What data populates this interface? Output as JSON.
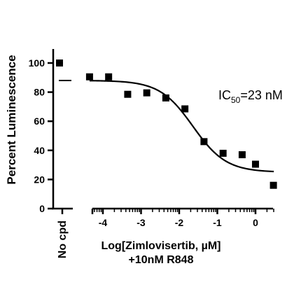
{
  "chart_data": {
    "type": "scatter",
    "ylabel": "Percent Luminescence",
    "xlabel_line1": "Log[Zimlovisertib, µM]",
    "xlabel_line2": "+10nM R848",
    "annotation": "IC50=23 nM",
    "annotation_parts": {
      "prefix": "IC",
      "subscript": "50",
      "suffix": "=23 nM"
    },
    "control": {
      "label": "No cpd",
      "points": [
        100
      ],
      "mean_line": 88
    },
    "x_ticks": [
      -4,
      -3,
      -2,
      -1,
      0
    ],
    "x_tick_labels": [
      "-4",
      "-3",
      "-2",
      "-1",
      "0"
    ],
    "y_ticks": [
      0,
      20,
      40,
      60,
      80,
      100
    ],
    "y_tick_labels": [
      "0",
      "20",
      "40",
      "60",
      "80",
      "100"
    ],
    "xlim": [
      -4.3,
      0.5
    ],
    "ylim": [
      0,
      110
    ],
    "points": [
      {
        "x": -4.35,
        "y": 90.5
      },
      {
        "x": -3.85,
        "y": 90.5
      },
      {
        "x": -3.35,
        "y": 78.5
      },
      {
        "x": -2.85,
        "y": 79.5
      },
      {
        "x": -2.35,
        "y": 76.0
      },
      {
        "x": -1.85,
        "y": 68.5
      },
      {
        "x": -1.35,
        "y": 46.0
      },
      {
        "x": -0.85,
        "y": 38.0
      },
      {
        "x": -0.35,
        "y": 37.0
      },
      {
        "x": 0.0,
        "y": 30.5
      },
      {
        "x": 0.47,
        "y": 16.0
      }
    ],
    "fit": {
      "model": "4PL",
      "top": 88,
      "bottom": 25,
      "log_ic50": -1.64,
      "hill_slope": -1.0
    },
    "grid": false,
    "legend": "none"
  }
}
